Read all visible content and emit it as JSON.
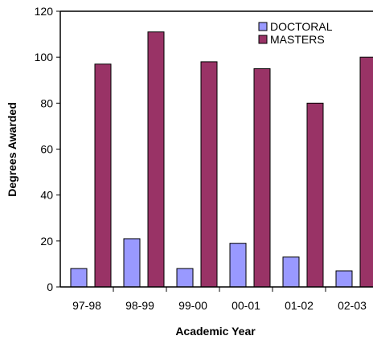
{
  "chart_data": {
    "type": "bar",
    "title": "",
    "xlabel": "Academic Year",
    "ylabel": "Degrees Awarded",
    "categories": [
      "97-98",
      "98-99",
      "99-00",
      "00-01",
      "01-02",
      "02-03"
    ],
    "ylim": [
      0,
      120
    ],
    "yticks": [
      0,
      20,
      40,
      60,
      80,
      100,
      120
    ],
    "grid": false,
    "legend_position": "top-right",
    "series": [
      {
        "name": "DOCTORAL",
        "color": "#9999FF",
        "values": [
          8,
          21,
          8,
          19,
          13,
          7
        ]
      },
      {
        "name": "MASTERS",
        "color": "#993366",
        "values": [
          97,
          111,
          98,
          95,
          80,
          100
        ]
      }
    ]
  }
}
